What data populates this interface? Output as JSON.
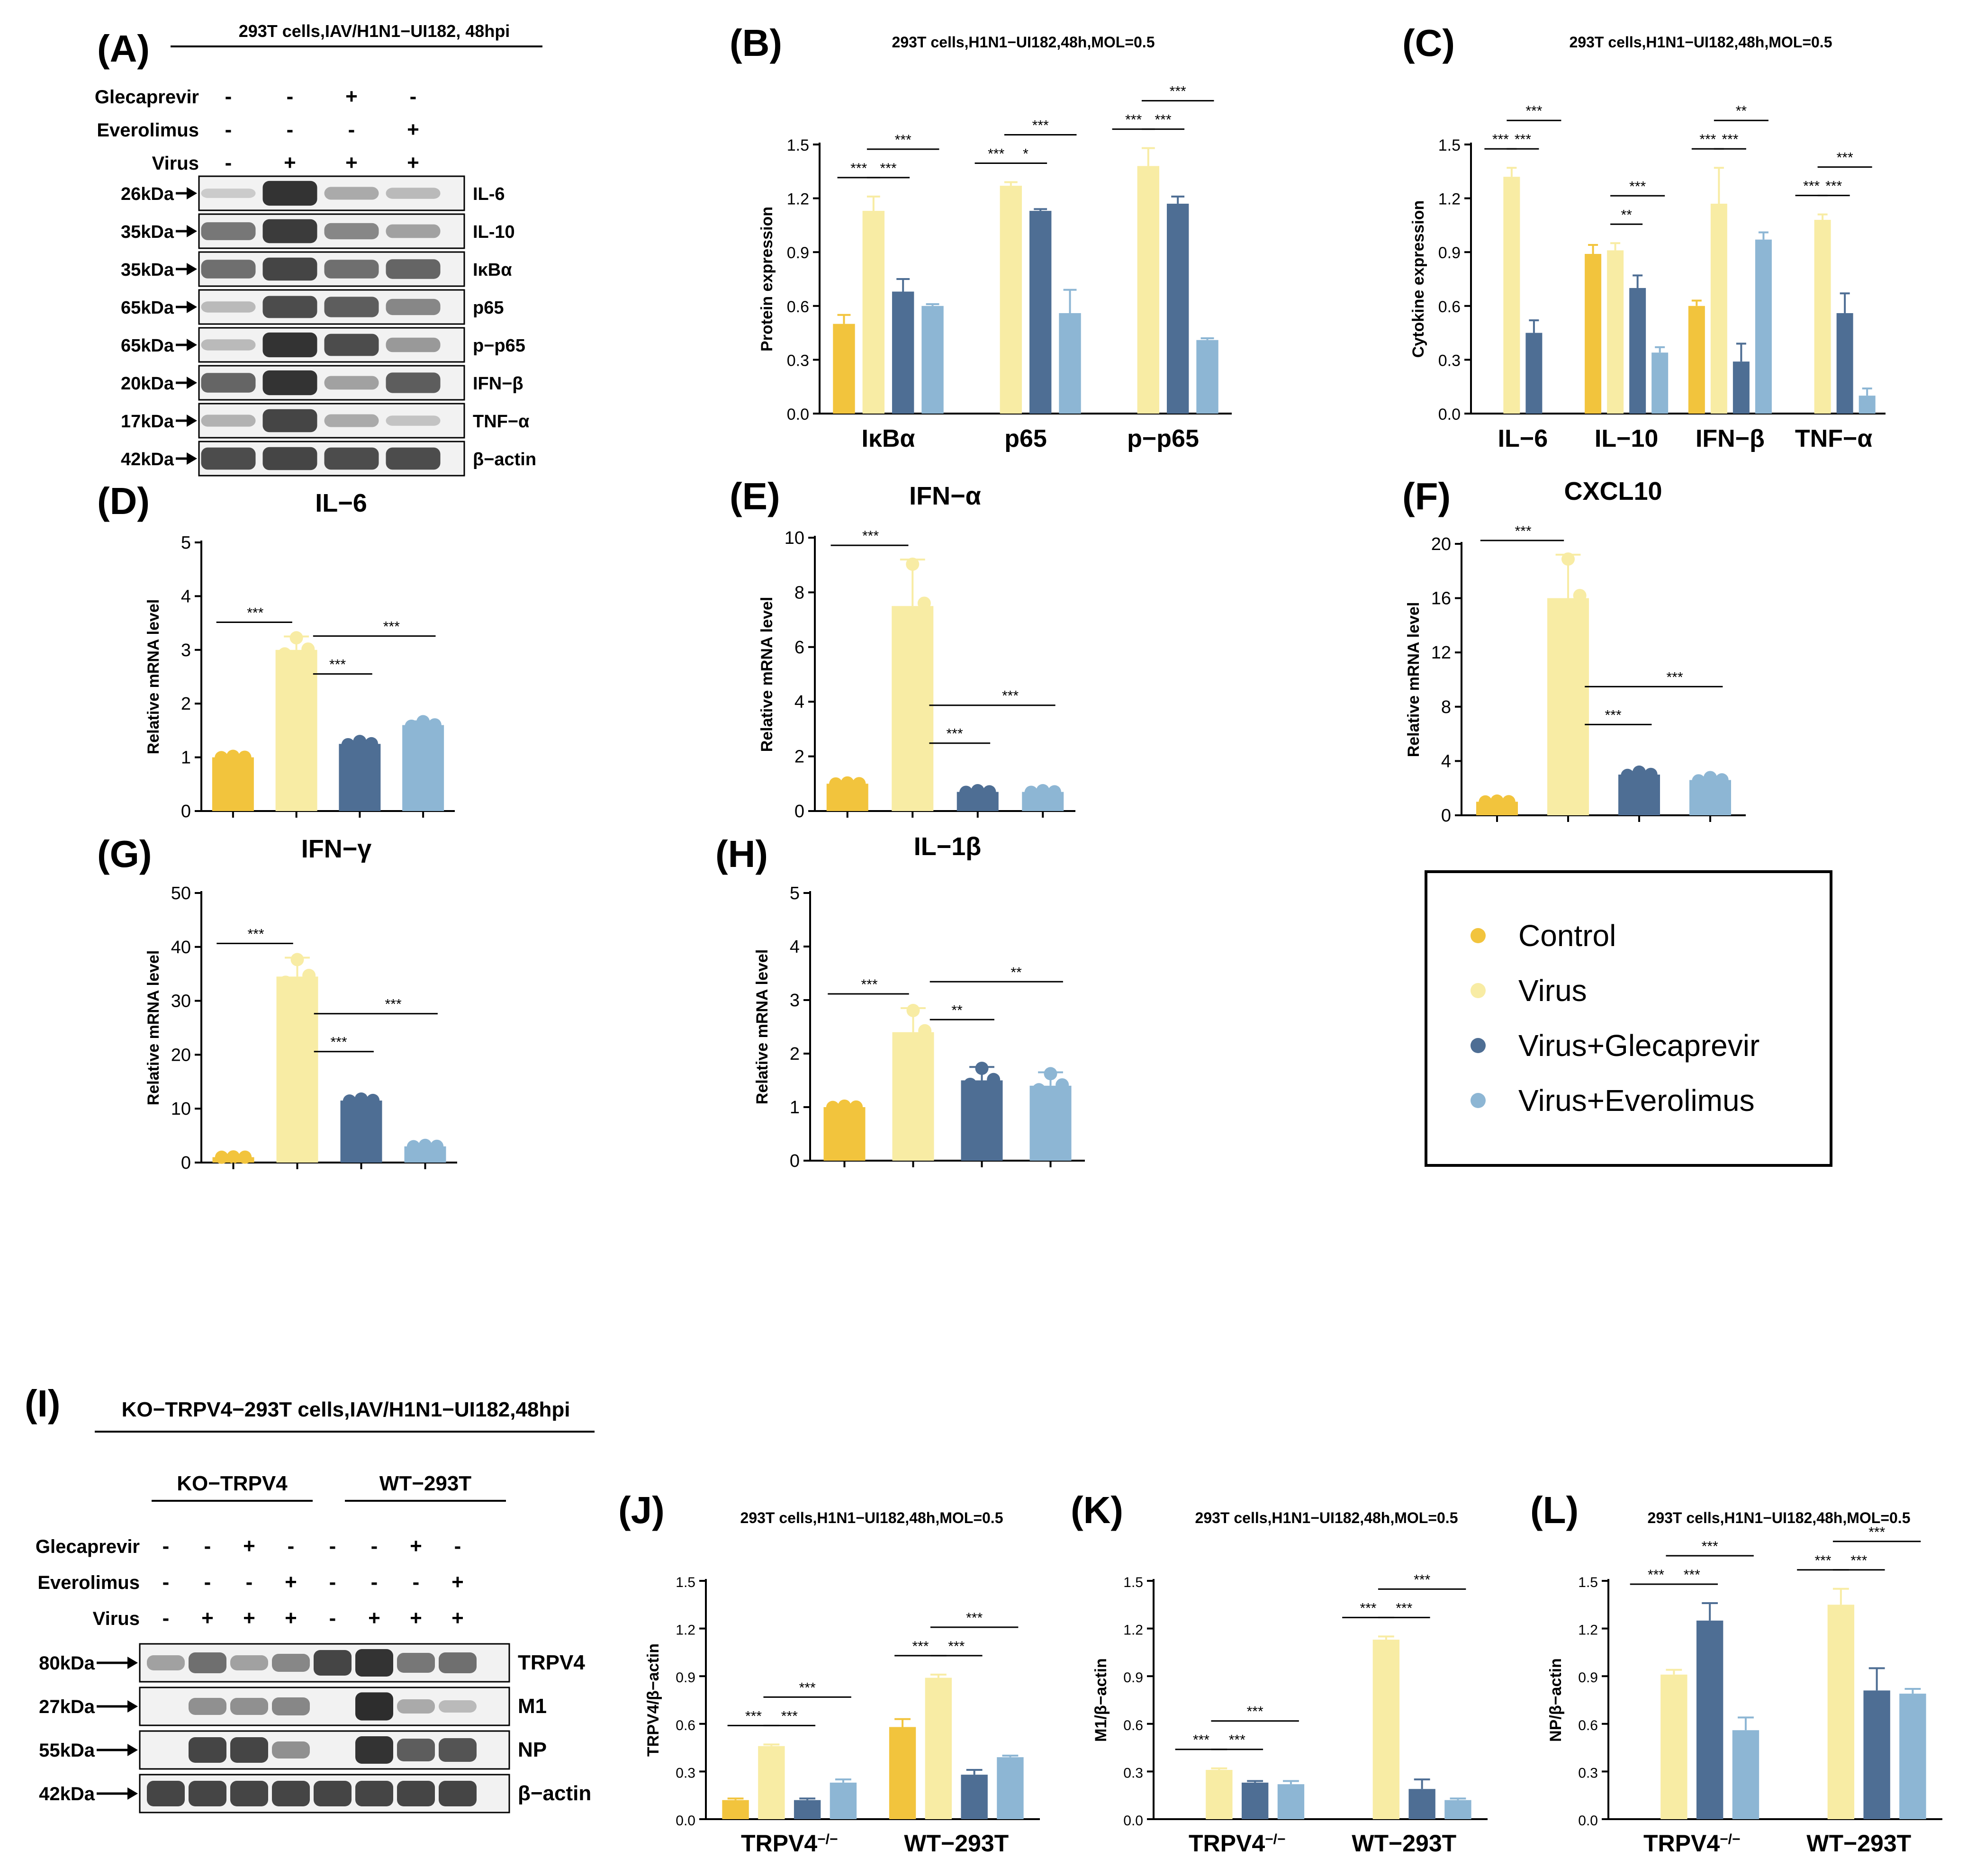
{
  "colors": {
    "control": "#F2C43D",
    "virus": "#F8ECA4",
    "glec": "#4E6E94",
    "ever": "#8DB6D4",
    "band": "#2a2a2a",
    "blotbg": "#f2f2f2"
  },
  "legend": {
    "items": [
      "Control",
      "Virus",
      "Virus+Glecaprevir",
      "Virus+Everolimus"
    ]
  },
  "panels": {
    "A": {
      "letter": "(A)",
      "title": "293T cells,IAV/H1N1−UI182, 48hpi",
      "rows": [
        {
          "label": "Glecaprevir",
          "signs": [
            "-",
            "-",
            "+",
            "-"
          ]
        },
        {
          "label": "Everolimus",
          "signs": [
            "-",
            "-",
            "-",
            "+"
          ]
        },
        {
          "label": "Virus",
          "signs": [
            "-",
            "+",
            "+",
            "+"
          ]
        }
      ],
      "blots": [
        {
          "kda": "26kDa",
          "name": "IL-6",
          "bands": [
            0.05,
            0.95,
            0.25,
            0.15
          ]
        },
        {
          "kda": "35kDa",
          "name": "IL-10",
          "bands": [
            0.55,
            0.9,
            0.45,
            0.3
          ]
        },
        {
          "kda": "35kDa",
          "name": "IκBα",
          "bands": [
            0.6,
            0.85,
            0.6,
            0.65
          ]
        },
        {
          "kda": "65kDa",
          "name": "p65",
          "bands": [
            0.15,
            0.8,
            0.7,
            0.45
          ]
        },
        {
          "kda": "65kDa",
          "name": "p−p65",
          "bands": [
            0.15,
            0.95,
            0.8,
            0.35
          ]
        },
        {
          "kda": "20kDa",
          "name": "IFN−β",
          "bands": [
            0.65,
            0.95,
            0.3,
            0.7
          ]
        },
        {
          "kda": "17kDa",
          "name": "TNF−α",
          "bands": [
            0.2,
            0.85,
            0.25,
            0.1
          ]
        },
        {
          "kda": "42kDa",
          "name": "β−actin",
          "bands": [
            0.8,
            0.85,
            0.8,
            0.8
          ]
        }
      ]
    },
    "I": {
      "letter": "(I)",
      "title": "KO−TRPV4−293T cells,IAV/H1N1−UI182,48hpi",
      "groups": [
        "KO−TRPV4",
        "WT−293T"
      ],
      "rows": [
        {
          "label": "Glecaprevir",
          "signs": [
            "-",
            "-",
            "+",
            "-",
            "-",
            "-",
            "+",
            "-"
          ]
        },
        {
          "label": "Everolimus",
          "signs": [
            "-",
            "-",
            "-",
            "+",
            "-",
            "-",
            "-",
            "+"
          ]
        },
        {
          "label": "Virus",
          "signs": [
            "-",
            "+",
            "+",
            "+",
            "-",
            "+",
            "+",
            "+"
          ]
        }
      ],
      "blots": [
        {
          "kda": "80kDa",
          "name": "TRPV4",
          "bands": [
            0.3,
            0.6,
            0.3,
            0.45,
            0.85,
            0.95,
            0.55,
            0.6
          ]
        },
        {
          "kda": "27kDa",
          "name": "M1",
          "bands": [
            0.0,
            0.4,
            0.4,
            0.45,
            0.0,
            0.98,
            0.25,
            0.15
          ]
        },
        {
          "kda": "55kDa",
          "name": "NP",
          "bands": [
            0.0,
            0.85,
            0.85,
            0.4,
            0.0,
            0.95,
            0.7,
            0.75
          ]
        },
        {
          "kda": "42kDa",
          "name": "β−actin",
          "bands": [
            0.85,
            0.85,
            0.85,
            0.85,
            0.85,
            0.85,
            0.85,
            0.85
          ]
        }
      ]
    }
  },
  "chart_data": [
    {
      "id": "B",
      "letter": "(B)",
      "type": "bar",
      "title": "293T cells,H1N1−UI182,48h,MOL=0.5",
      "ylabel": "Protein expression",
      "categories": [
        "IκBα",
        "p65",
        "p−p65"
      ],
      "ylim": [
        0,
        1.5
      ],
      "yticks": [
        "0.0",
        "0.3",
        "0.6",
        "0.9",
        "1.2",
        "1.5"
      ],
      "series": [
        {
          "name": "Control",
          "values": [
            0.5,
            null,
            null
          ]
        },
        {
          "name": "Virus",
          "values": [
            1.13,
            1.27,
            1.38
          ]
        },
        {
          "name": "Virus+Glecaprevir",
          "values": [
            0.68,
            1.13,
            1.17
          ]
        },
        {
          "name": "Virus+Everolimus",
          "values": [
            0.6,
            0.56,
            0.41
          ]
        }
      ],
      "errors": [
        [
          0.05,
          null,
          null
        ],
        [
          0.08,
          0.02,
          0.1
        ],
        [
          0.07,
          0.01,
          0.04
        ],
        [
          0.01,
          0.13,
          0.01
        ]
      ],
      "sig": [
        [
          "***",
          "***",
          "***"
        ],
        [
          "***",
          "*",
          "***"
        ],
        [
          "***",
          "***",
          "***"
        ]
      ]
    },
    {
      "id": "C",
      "letter": "(C)",
      "type": "bar",
      "title": "293T cells,H1N1−UI182,48h,MOL=0.5",
      "ylabel": "Cytokine expression",
      "categories": [
        "IL−6",
        "IL−10",
        "IFN−β",
        "TNF−α"
      ],
      "ylim": [
        0,
        1.5
      ],
      "yticks": [
        "0.0",
        "0.3",
        "0.6",
        "0.9",
        "1.2",
        "1.5"
      ],
      "series": [
        {
          "name": "Control",
          "values": [
            null,
            0.89,
            0.6,
            null
          ]
        },
        {
          "name": "Virus",
          "values": [
            1.32,
            0.91,
            1.17,
            1.08
          ]
        },
        {
          "name": "Virus+Glecaprevir",
          "values": [
            0.45,
            0.7,
            0.29,
            0.56
          ]
        },
        {
          "name": "Virus+Everolimus",
          "values": [
            null,
            0.34,
            0.97,
            0.1
          ]
        }
      ],
      "errors": [
        [
          null,
          0.05,
          0.03,
          null
        ],
        [
          0.05,
          0.04,
          0.2,
          0.03
        ],
        [
          0.07,
          0.07,
          0.1,
          0.11
        ],
        [
          null,
          0.03,
          0.04,
          0.04
        ]
      ],
      "sig": [
        [
          "***",
          "***",
          "***"
        ],
        [
          "**",
          "***"
        ],
        [
          "***",
          "***",
          "**"
        ],
        [
          "***",
          "***",
          "***"
        ]
      ]
    },
    {
      "id": "D",
      "letter": "(D)",
      "type": "bar",
      "title": "IL−6",
      "ylabel": "Relative mRNA level",
      "ylim": [
        0,
        5
      ],
      "yticks": [
        "0",
        "1",
        "2",
        "3",
        "4",
        "5"
      ],
      "values": [
        1.0,
        3.0,
        1.25,
        1.6
      ],
      "errors": [
        0.02,
        0.25,
        0.05,
        0.07
      ],
      "sig": [
        "***",
        "***",
        "***"
      ]
    },
    {
      "id": "E",
      "letter": "(E)",
      "type": "bar",
      "title": "IFN−α",
      "ylabel": "Relative mRNA level",
      "ylim": [
        0,
        10
      ],
      "yticks": [
        "0",
        "2",
        "4",
        "6",
        "8",
        "10"
      ],
      "values": [
        1.0,
        7.5,
        0.7,
        0.7
      ],
      "errors": [
        0.03,
        1.7,
        0.05,
        0.05
      ],
      "sig": [
        "***",
        "***",
        "***"
      ]
    },
    {
      "id": "F",
      "letter": "(F)",
      "type": "bar",
      "title": "CXCL10",
      "ylabel": "Relative mRNA level",
      "ylim": [
        0,
        20
      ],
      "yticks": [
        "0",
        "4",
        "8",
        "12",
        "16",
        "20"
      ],
      "values": [
        1.0,
        16.0,
        3.0,
        2.6
      ],
      "errors": [
        0.05,
        3.2,
        0.2,
        0.2
      ],
      "sig": [
        "***",
        "***",
        "***"
      ]
    },
    {
      "id": "G",
      "letter": "(G)",
      "type": "bar",
      "title": "IFN−γ",
      "ylabel": "Relative mRNA level",
      "ylim": [
        0,
        50
      ],
      "yticks": [
        "0",
        "10",
        "20",
        "30",
        "40",
        "50"
      ],
      "values": [
        1.0,
        34.5,
        11.5,
        3.0
      ],
      "errors": [
        0.05,
        3.5,
        0.3,
        0.2
      ],
      "sig": [
        "***",
        "***",
        "***"
      ]
    },
    {
      "id": "H",
      "letter": "(H)",
      "type": "bar",
      "title": "IL−1β",
      "ylabel": "Relative mRNA level",
      "ylim": [
        0,
        5
      ],
      "yticks": [
        "0",
        "1",
        "2",
        "3",
        "4",
        "5"
      ],
      "values": [
        1.0,
        2.4,
        1.5,
        1.4
      ],
      "errors": [
        0.02,
        0.45,
        0.25,
        0.25
      ],
      "sig": [
        "***",
        "**",
        "**"
      ]
    },
    {
      "id": "J",
      "letter": "(J)",
      "type": "bar",
      "title": "293T cells,H1N1−UI182,48h,MOL=0.5",
      "ylabel": "TRPV4/β−actin",
      "categories": [
        "TRPV4",
        "WT−293T"
      ],
      "ylim": [
        0,
        1.5
      ],
      "yticks": [
        "0.0",
        "0.3",
        "0.6",
        "0.9",
        "1.2",
        "1.5"
      ],
      "series": [
        {
          "name": "Control",
          "values": [
            0.12,
            0.58
          ]
        },
        {
          "name": "Virus",
          "values": [
            0.46,
            0.89
          ]
        },
        {
          "name": "Virus+Glecaprevir",
          "values": [
            0.12,
            0.28
          ]
        },
        {
          "name": "Virus+Everolimus",
          "values": [
            0.23,
            0.39
          ]
        }
      ],
      "errors": [
        [
          0.01,
          0.05
        ],
        [
          0.01,
          0.02
        ],
        [
          0.01,
          0.03
        ],
        [
          0.02,
          0.01
        ]
      ],
      "sig": [
        [
          "***",
          "***",
          "***"
        ],
        [
          "***",
          "***",
          "***"
        ]
      ]
    },
    {
      "id": "K",
      "letter": "(K)",
      "type": "bar",
      "title": "293T cells,H1N1−UI182,48h,MOL=0.5",
      "ylabel": "M1/β−actin",
      "categories": [
        "TRPV4",
        "WT−293T"
      ],
      "ylim": [
        0,
        1.5
      ],
      "yticks": [
        "0.0",
        "0.3",
        "0.6",
        "0.9",
        "1.2",
        "1.5"
      ],
      "series": [
        {
          "name": "Control",
          "values": [
            null,
            null
          ]
        },
        {
          "name": "Virus",
          "values": [
            0.31,
            1.13
          ]
        },
        {
          "name": "Virus+Glecaprevir",
          "values": [
            0.23,
            0.19
          ]
        },
        {
          "name": "Virus+Everolimus",
          "values": [
            0.22,
            0.12
          ]
        }
      ],
      "errors": [
        [
          null,
          null
        ],
        [
          0.01,
          0.02
        ],
        [
          0.01,
          0.06
        ],
        [
          0.02,
          0.01
        ]
      ],
      "sig": [
        [
          "***",
          "***",
          "***"
        ],
        [
          "***",
          "***",
          "***"
        ]
      ]
    },
    {
      "id": "L",
      "letter": "(L)",
      "type": "bar",
      "title": "293T cells,H1N1−UI182,48h,MOL=0.5",
      "ylabel": "NP/β−actin",
      "categories": [
        "TRPV4",
        "WT−293T"
      ],
      "ylim": [
        0,
        1.5
      ],
      "yticks": [
        "0.0",
        "0.3",
        "0.6",
        "0.9",
        "1.2",
        "1.5"
      ],
      "series": [
        {
          "name": "Control",
          "values": [
            null,
            null
          ]
        },
        {
          "name": "Virus",
          "values": [
            0.91,
            1.35
          ]
        },
        {
          "name": "Virus+Glecaprevir",
          "values": [
            1.25,
            0.81
          ]
        },
        {
          "name": "Virus+Everolimus",
          "values": [
            0.56,
            0.79
          ]
        }
      ],
      "errors": [
        [
          null,
          null
        ],
        [
          0.03,
          0.1
        ],
        [
          0.11,
          0.14
        ],
        [
          0.08,
          0.03
        ]
      ],
      "sig": [
        [
          "***",
          "***",
          "***"
        ],
        [
          "***",
          "***",
          "***"
        ]
      ]
    }
  ],
  "trpv4_superscript": "−/−"
}
